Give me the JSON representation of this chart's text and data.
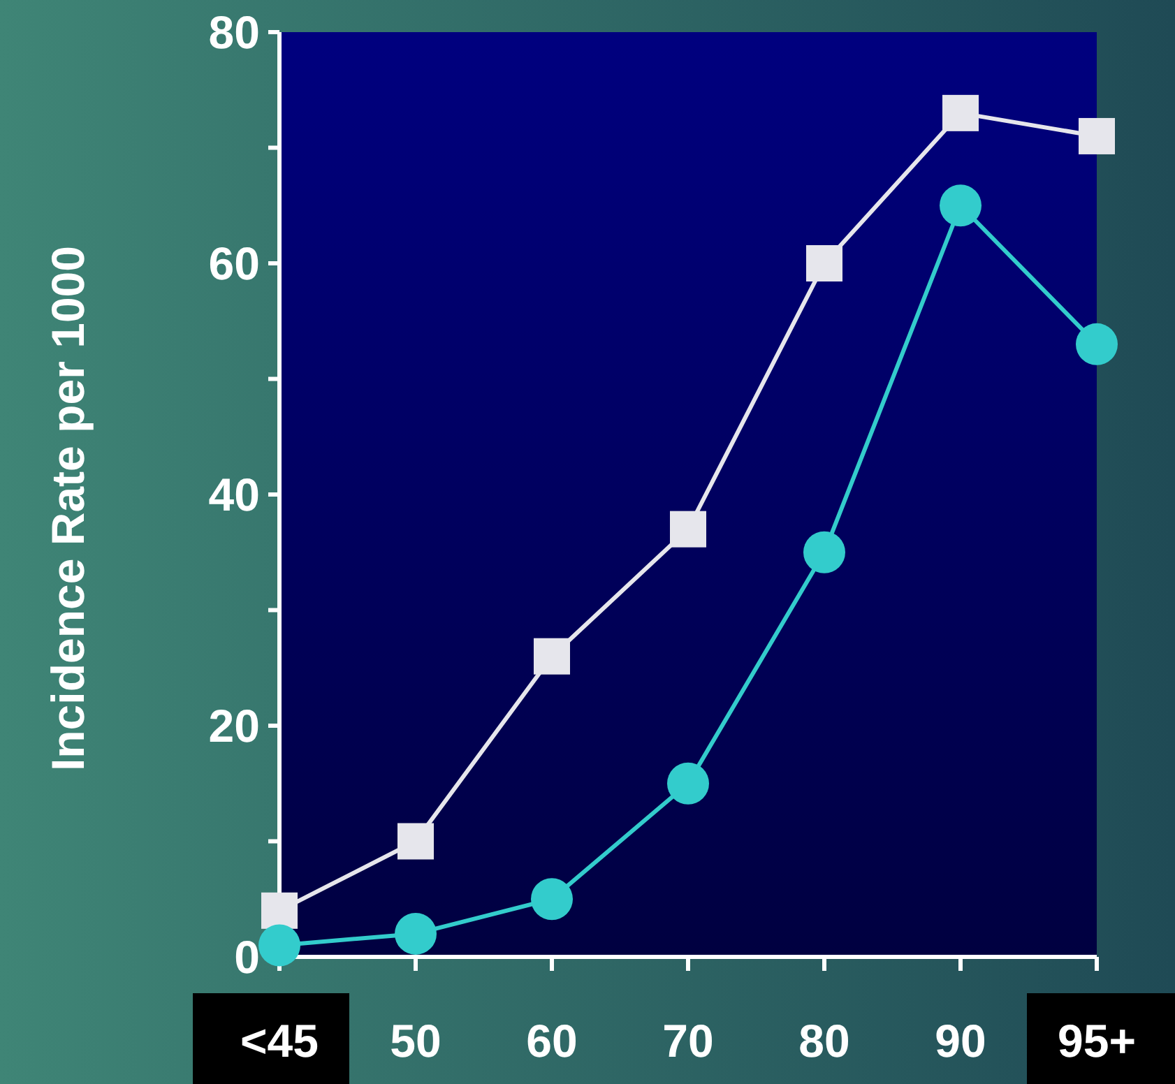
{
  "chart_data": {
    "type": "line",
    "ylabel": "Incidence Rate per 1000",
    "categories": [
      "<45",
      "50",
      "60",
      "70",
      "80",
      "90",
      "95+"
    ],
    "series": [
      {
        "color": "#e6e6ec",
        "marker": "square",
        "values": [
          4,
          10,
          26,
          37,
          60,
          73,
          71
        ]
      },
      {
        "color": "#33cccc",
        "marker": "circle",
        "values": [
          1,
          2,
          5,
          15,
          35,
          65,
          53
        ]
      }
    ],
    "ylim": [
      0,
      80
    ],
    "yticks": [
      0,
      {
        "value": 10,
        "label": null
      },
      20,
      {
        "value": 30,
        "label": null
      },
      40,
      {
        "value": 50,
        "label": null
      },
      60,
      {
        "value": 70,
        "label": null
      },
      80
    ],
    "grid": false
  }
}
